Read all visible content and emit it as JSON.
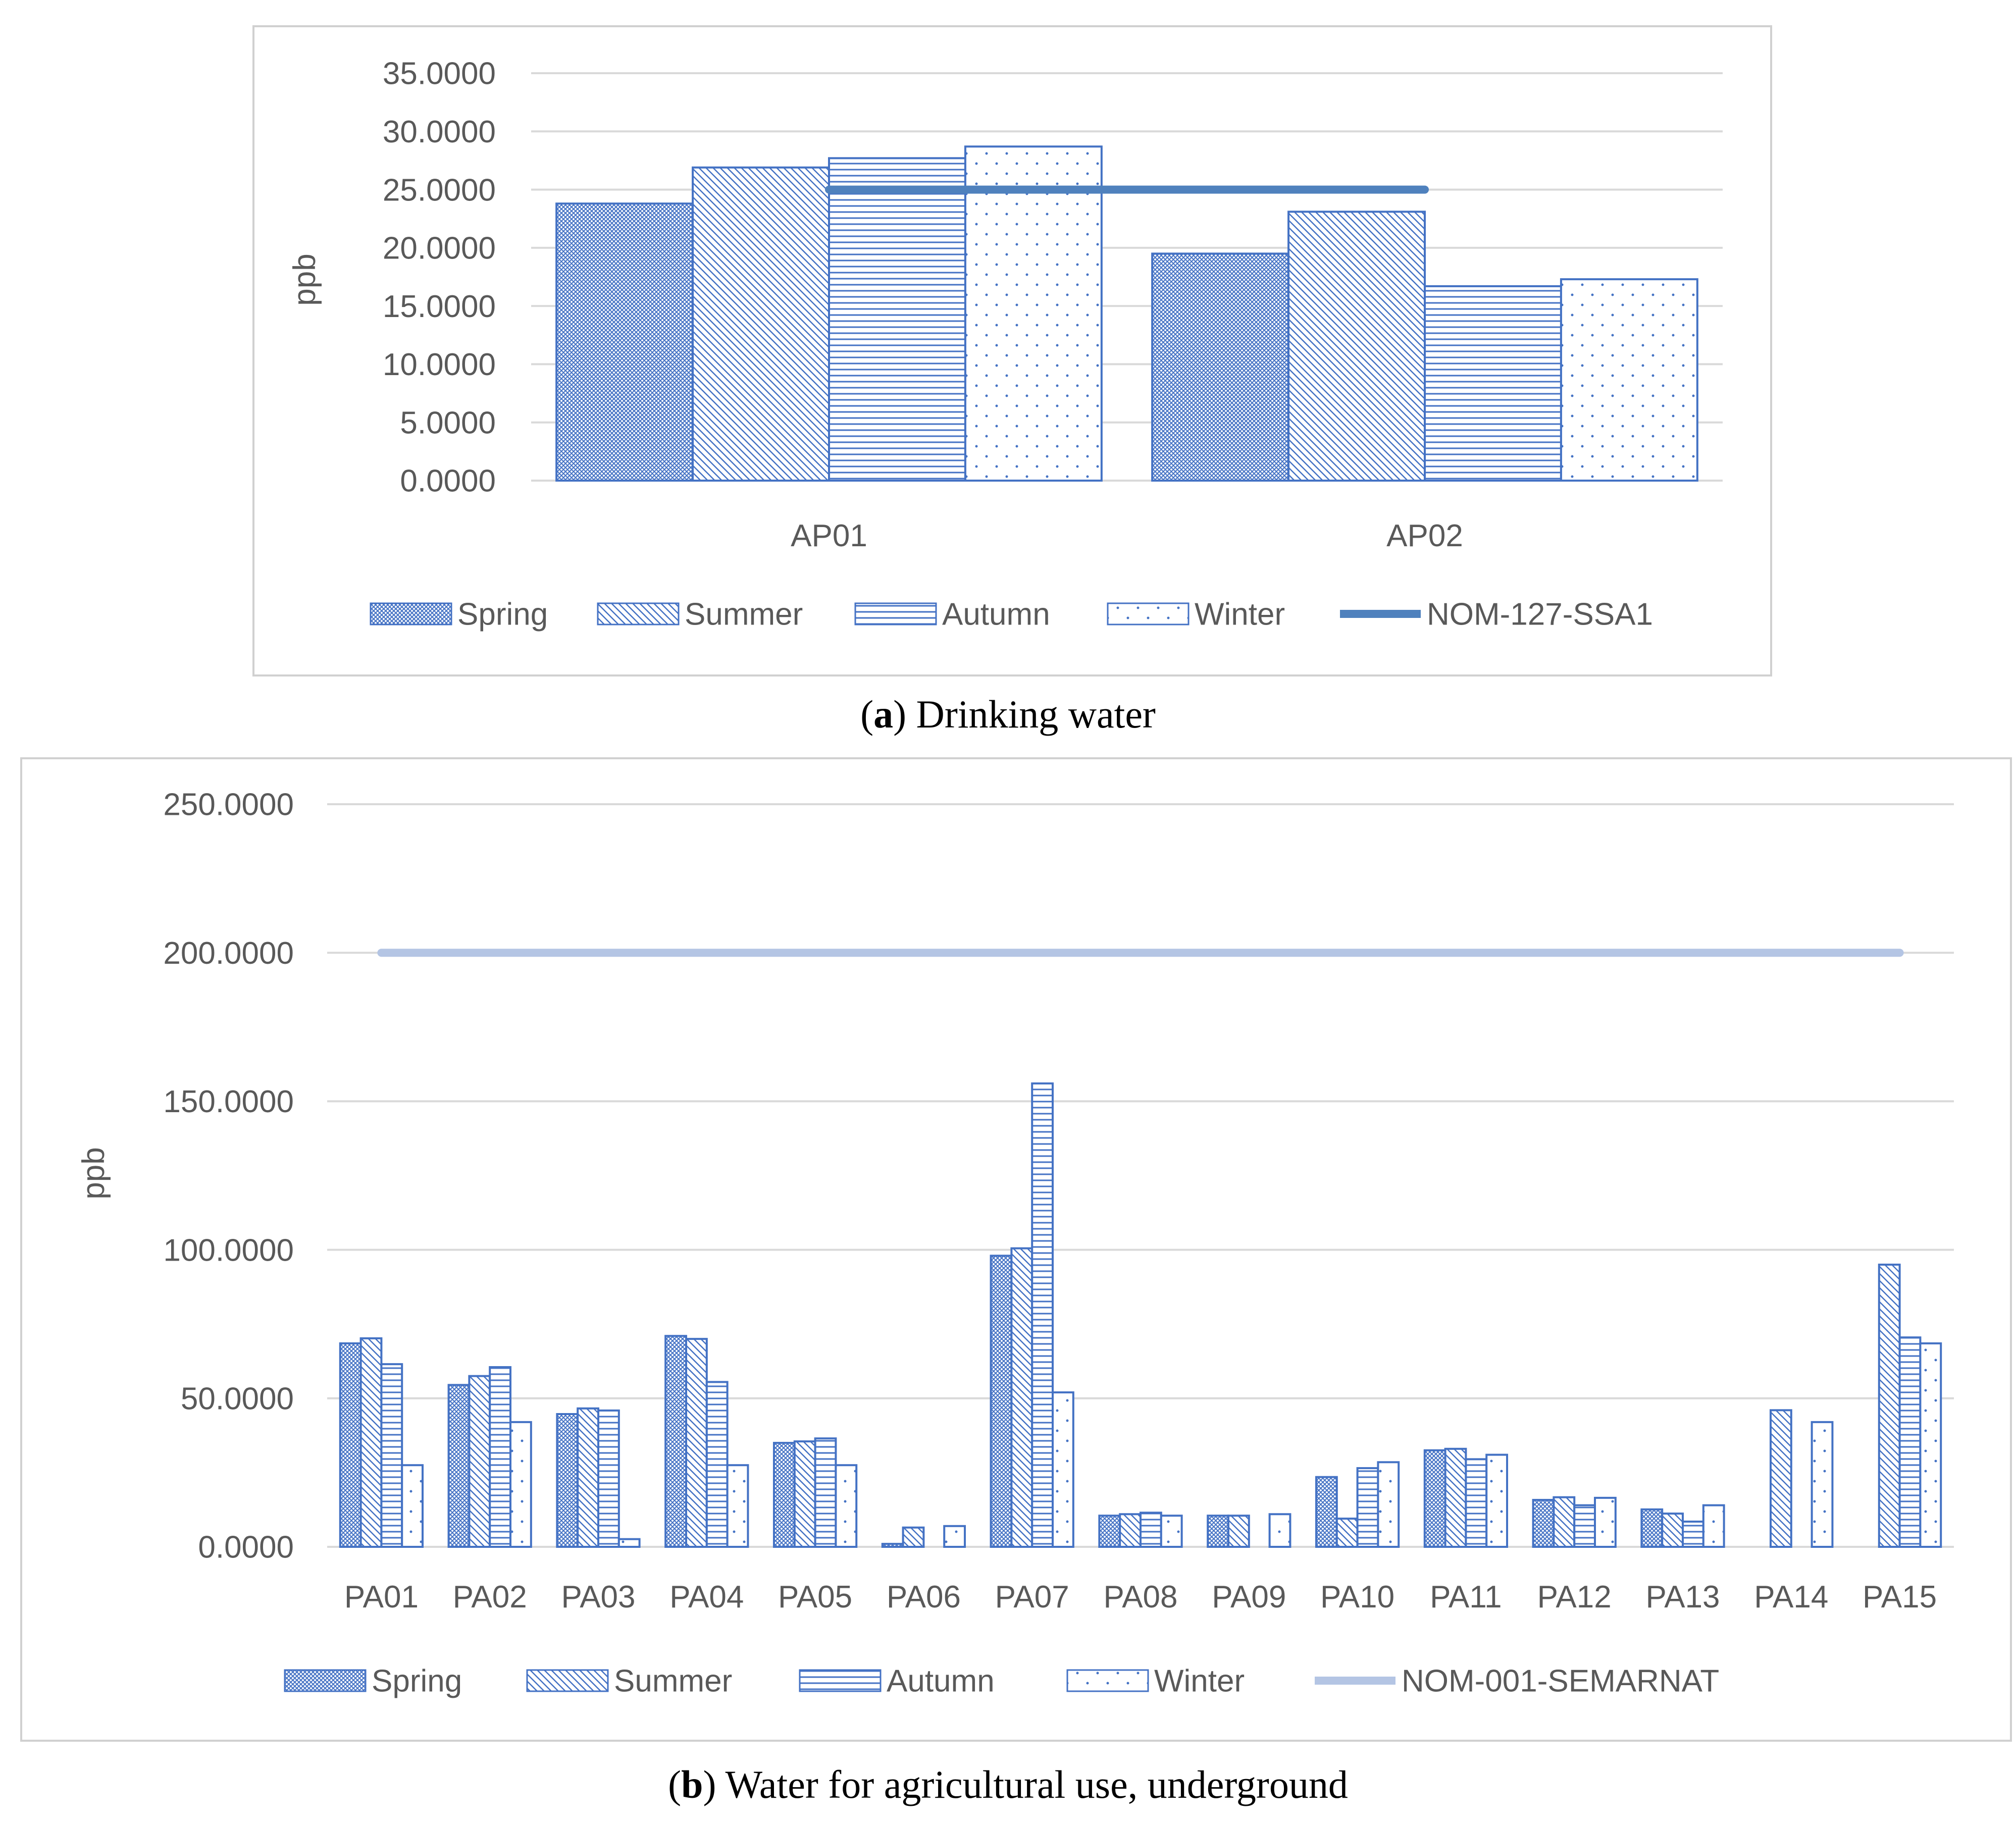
{
  "colors": {
    "bar_stroke": "#4472c4",
    "line_a": "#4f81bd",
    "line_b": "#b4c5e4",
    "grid": "#d9d9d9",
    "text": "#595959"
  },
  "panel_a": {
    "caption_letter": "a",
    "caption_text": "Drinking water",
    "chart_data": {
      "type": "bar",
      "title": "",
      "xlabel": "",
      "ylabel": "ppb",
      "ylim": [
        0,
        35
      ],
      "yticks": [
        "0.0000",
        "5.0000",
        "10.0000",
        "15.0000",
        "20.0000",
        "25.0000",
        "30.0000",
        "35.0000"
      ],
      "categories": [
        "AP01",
        "AP02"
      ],
      "series": [
        {
          "name": "Spring",
          "values": [
            23.8,
            19.5
          ]
        },
        {
          "name": "Summer",
          "values": [
            26.9,
            23.1
          ]
        },
        {
          "name": "Autumn",
          "values": [
            27.7,
            16.7
          ]
        },
        {
          "name": "Winter",
          "values": [
            28.7,
            17.3
          ]
        }
      ],
      "reference_line": {
        "name": "NOM-127-SSA1",
        "value": 25
      },
      "legend": "bottom"
    }
  },
  "panel_b": {
    "caption_letter": "b",
    "caption_text": "Water for agricultural use, underground",
    "chart_data": {
      "type": "bar",
      "title": "",
      "xlabel": "",
      "ylabel": "ppb",
      "ylim": [
        0,
        250
      ],
      "yticks": [
        "0.0000",
        "50.0000",
        "100.0000",
        "150.0000",
        "200.0000",
        "250.0000"
      ],
      "categories": [
        "PA01",
        "PA02",
        "PA03",
        "PA04",
        "PA05",
        "PA06",
        "PA07",
        "PA08",
        "PA09",
        "PA10",
        "PA11",
        "PA12",
        "PA13",
        "PA14",
        "PA15"
      ],
      "series": [
        {
          "name": "Spring",
          "values": [
            68.5,
            54.5,
            44.7,
            71.0,
            35.0,
            1.0,
            98.0,
            10.5,
            10.5,
            23.5,
            32.5,
            15.8,
            12.6,
            null,
            null
          ]
        },
        {
          "name": "Summer",
          "values": [
            70.2,
            57.5,
            46.6,
            70.0,
            35.5,
            6.5,
            100.5,
            11.0,
            10.5,
            9.5,
            33.0,
            16.7,
            11.2,
            46.0,
            95.0
          ]
        },
        {
          "name": "Autumn",
          "values": [
            61.5,
            60.5,
            45.9,
            55.5,
            36.5,
            null,
            156.0,
            11.5,
            null,
            26.5,
            29.5,
            14.0,
            8.5,
            null,
            70.5
          ]
        },
        {
          "name": "Winter",
          "values": [
            27.5,
            42.0,
            2.6,
            27.5,
            27.5,
            7.0,
            52.0,
            10.5,
            11.0,
            28.5,
            31.0,
            16.5,
            14.0,
            42.0,
            68.5
          ]
        }
      ],
      "reference_line": {
        "name": "NOM-001-SEMARNAT",
        "value": 200
      },
      "legend": "bottom"
    }
  }
}
